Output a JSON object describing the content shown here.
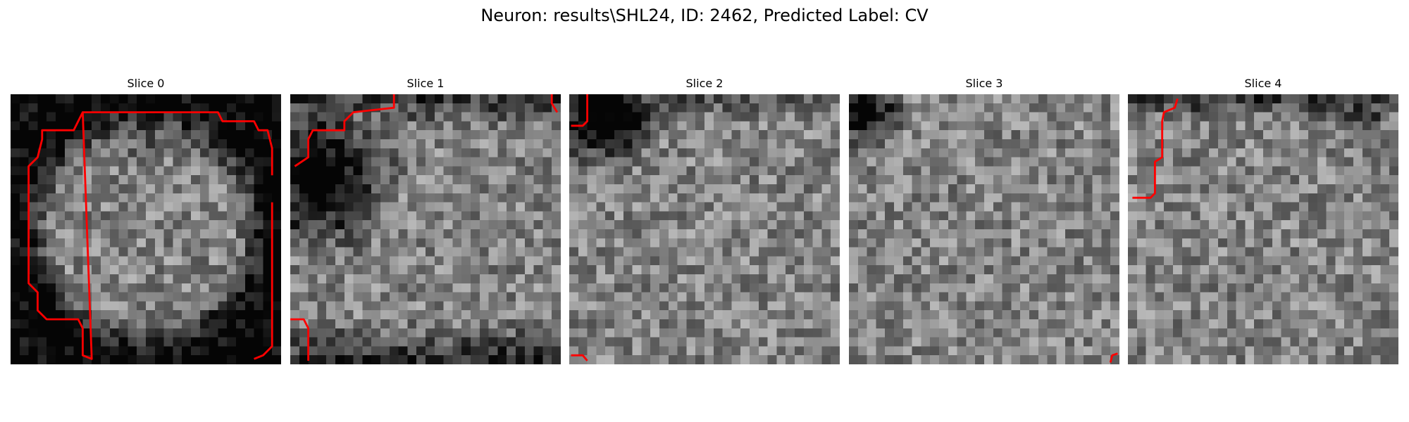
{
  "title": "Neuron: results\\SHL24, ID: 2462, Predicted Label: CV",
  "panels": [
    {
      "title": "Slice 0",
      "seed": 1101,
      "dark": "ring"
    },
    {
      "title": "Slice 1",
      "seed": 2203,
      "dark": "left"
    },
    {
      "title": "Slice 2",
      "seed": 3307,
      "dark": "topleft"
    },
    {
      "title": "Slice 3",
      "seed": 4409,
      "dark": "topleft-small"
    },
    {
      "title": "Slice 4",
      "seed": 5501,
      "dark": "top"
    }
  ],
  "colors": {
    "contour": "#ff0000",
    "background": "#ffffff"
  }
}
